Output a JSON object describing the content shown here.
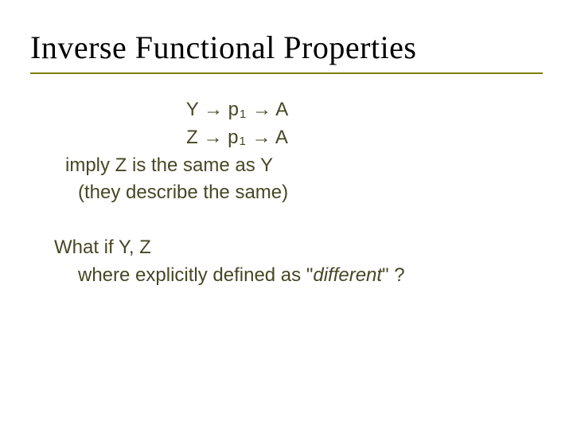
{
  "colors": {
    "text": "#474725",
    "title": "#000000",
    "underline": "#808000",
    "background": "#ffffff"
  },
  "typography": {
    "title_font": "Times New Roman",
    "body_font": "Verdana",
    "title_size_pt": 40,
    "body_size_pt": 24
  },
  "title": "Inverse Functional Properties",
  "formula1": {
    "lhs": "Y",
    "arrow": "→",
    "mid_base": "p",
    "mid_sub": "1",
    "rhs": "A"
  },
  "formula2": {
    "lhs": "Z",
    "arrow": "→",
    "mid_base": "p",
    "mid_sub": "1",
    "rhs": "A"
  },
  "line3": "imply Z is the same as Y",
  "line4": "(they describe the same)",
  "line5a": "What if  Y, Z",
  "line6_pre": "where explicitly defined as \"",
  "line6_em": "different",
  "line6_post": "\" ?"
}
